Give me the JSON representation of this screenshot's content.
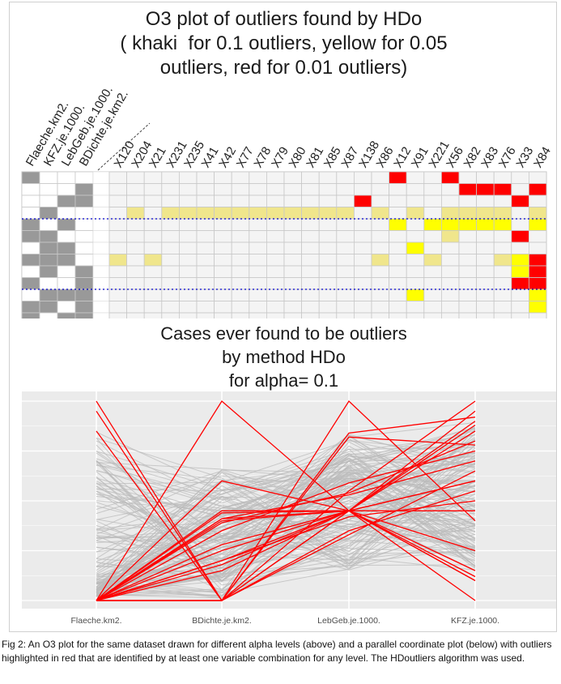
{
  "caption": "Fig 2: An O3 plot for the same dataset drawn for different alpha levels (above) and a parallel coordinate plot (below) with outliers highlighted in red that are identified by at least one variable combination for any level. The HDoutliers algorithm was used.",
  "o3_plot": {
    "title_lines": [
      "O3 plot of outliers found by HDo",
      "( khaki  for 0.1 outliers, yellow for 0.05",
      "outliers, red for 0.01 outliers)"
    ],
    "variable_labels": [
      "Flaeche.km2.",
      "KFZ.je.1000.",
      "LebGeb.je.1000.",
      "BDichte.je.km2."
    ],
    "case_labels": [
      "X120",
      "X204",
      "X21",
      "X231",
      "X235",
      "X41",
      "X42",
      "X77",
      "X78",
      "X79",
      "X80",
      "X81",
      "X85",
      "X87",
      "X138",
      "X86",
      "X12",
      "X91",
      "X221",
      "X56",
      "X82",
      "X83",
      "X76",
      "X33",
      "X84"
    ],
    "colors": {
      "khaki": "#f0e68c",
      "yellow": "#ffff00",
      "red": "#ff0000",
      "grey": "#999999",
      "separator": "#0000cc"
    },
    "variable_rows": [
      [
        1,
        0,
        0,
        0
      ],
      [
        0,
        0,
        0,
        1
      ],
      [
        0,
        0,
        1,
        1
      ],
      [
        0,
        1,
        0,
        0
      ],
      [
        1,
        0,
        1,
        0
      ],
      [
        1,
        1,
        0,
        0
      ],
      [
        0,
        1,
        1,
        0
      ],
      [
        1,
        1,
        1,
        0
      ],
      [
        0,
        1,
        0,
        1
      ],
      [
        1,
        0,
        0,
        1
      ],
      [
        0,
        1,
        1,
        1
      ],
      [
        1,
        1,
        0,
        1
      ],
      [
        1,
        0,
        1,
        1
      ],
      [
        1,
        1,
        1,
        1
      ]
    ],
    "level_rows": [
      [
        0,
        0,
        0,
        0,
        0,
        0,
        0,
        0,
        0,
        0,
        0,
        0,
        0,
        0,
        0,
        0,
        3,
        0,
        0,
        3,
        0,
        0,
        0,
        0,
        0
      ],
      [
        0,
        0,
        0,
        0,
        0,
        0,
        0,
        0,
        0,
        0,
        0,
        0,
        0,
        0,
        0,
        0,
        0,
        0,
        0,
        0,
        3,
        3,
        3,
        0,
        3
      ],
      [
        0,
        0,
        0,
        0,
        0,
        0,
        0,
        0,
        0,
        0,
        0,
        0,
        0,
        0,
        3,
        0,
        0,
        0,
        0,
        0,
        0,
        0,
        0,
        3,
        0
      ],
      [
        0,
        1,
        0,
        1,
        1,
        1,
        1,
        1,
        1,
        1,
        1,
        1,
        1,
        1,
        0,
        1,
        0,
        1,
        0,
        1,
        1,
        1,
        1,
        0,
        1
      ],
      [
        0,
        0,
        0,
        0,
        0,
        0,
        0,
        0,
        0,
        0,
        0,
        0,
        0,
        0,
        0,
        0,
        2,
        0,
        2,
        2,
        2,
        2,
        2,
        0,
        2
      ],
      [
        0,
        0,
        0,
        0,
        0,
        0,
        0,
        0,
        0,
        0,
        0,
        0,
        0,
        0,
        0,
        0,
        0,
        0,
        0,
        1,
        0,
        0,
        0,
        3,
        0
      ],
      [
        0,
        0,
        0,
        0,
        0,
        0,
        0,
        0,
        0,
        0,
        0,
        0,
        0,
        0,
        0,
        0,
        0,
        2,
        0,
        0,
        0,
        0,
        0,
        0,
        0
      ],
      [
        1,
        0,
        1,
        0,
        0,
        0,
        0,
        0,
        0,
        0,
        0,
        0,
        0,
        0,
        0,
        1,
        0,
        0,
        1,
        0,
        0,
        0,
        1,
        2,
        3
      ],
      [
        0,
        0,
        0,
        0,
        0,
        0,
        0,
        0,
        0,
        0,
        0,
        0,
        0,
        0,
        0,
        0,
        0,
        0,
        0,
        0,
        0,
        0,
        0,
        2,
        3
      ],
      [
        0,
        0,
        0,
        0,
        0,
        0,
        0,
        0,
        0,
        0,
        0,
        0,
        0,
        0,
        0,
        0,
        0,
        0,
        0,
        0,
        0,
        0,
        0,
        3,
        3
      ],
      [
        0,
        0,
        0,
        0,
        0,
        0,
        0,
        0,
        0,
        0,
        0,
        0,
        0,
        0,
        0,
        0,
        0,
        2,
        0,
        0,
        0,
        0,
        0,
        0,
        2
      ],
      [
        0,
        0,
        0,
        0,
        0,
        0,
        0,
        0,
        0,
        0,
        0,
        0,
        0,
        0,
        0,
        0,
        0,
        0,
        0,
        0,
        0,
        0,
        0,
        0,
        2
      ],
      [
        0,
        0,
        0,
        0,
        0,
        0,
        0,
        0,
        0,
        0,
        0,
        0,
        0,
        0,
        0,
        0,
        0,
        0,
        0,
        0,
        0,
        0,
        0,
        0,
        0
      ],
      [
        0,
        0,
        0,
        0,
        0,
        0,
        0,
        0,
        0,
        0,
        0,
        0,
        0,
        0,
        0,
        0,
        0,
        0,
        0,
        0,
        0,
        0,
        0,
        0,
        0
      ]
    ],
    "separator_after_rows": [
      3,
      9
    ]
  },
  "chart_data": {
    "type": "parallel-coordinates",
    "title_lines": [
      "Cases ever found to be outliers",
      "by method HDo",
      "for alpha= 0.1"
    ],
    "axes": [
      "Flaeche.km2.",
      "BDichte.je.km2.",
      "LebGeb.je.1000.",
      "KFZ.je.1000."
    ],
    "range": [
      0,
      1
    ],
    "grid": true,
    "colors": {
      "outlier": "#ff0000",
      "other": "#bbbbbb",
      "background": "#ebebeb",
      "gridline": "#ffffff"
    },
    "outlier_series": [
      [
        1.0,
        0.0,
        0.35,
        0.55
      ],
      [
        0.95,
        0.0,
        0.45,
        0.6
      ],
      [
        0.85,
        0.0,
        0.55,
        1.0
      ],
      [
        0.0,
        1.0,
        0.45,
        0.0
      ],
      [
        0.0,
        0.6,
        0.45,
        0.9
      ],
      [
        0.0,
        0.44,
        0.45,
        0.95
      ],
      [
        0.0,
        0.41,
        0.45,
        0.88
      ],
      [
        0.0,
        0.25,
        0.45,
        0.85
      ],
      [
        0.0,
        0.39,
        0.54,
        0.8
      ],
      [
        0.0,
        0.41,
        0.53,
        0.7
      ],
      [
        0.0,
        0.28,
        0.45,
        0.45
      ],
      [
        0.0,
        0.0,
        1.0,
        0.4
      ],
      [
        0.0,
        0.0,
        0.84,
        0.92
      ],
      [
        0.0,
        0.4,
        0.45,
        0.1
      ],
      [
        0.0,
        0.2,
        0.45,
        0.15
      ],
      [
        0.0,
        0.18,
        0.45,
        0.12
      ],
      [
        0.0,
        0.15,
        0.45,
        0.1
      ],
      [
        0.0,
        0.0,
        0.45,
        0.25
      ],
      [
        0.0,
        0.45,
        0.45,
        0.6
      ],
      [
        0.0,
        0.35,
        0.59,
        0.75
      ],
      [
        0.0,
        0.2,
        0.42,
        0.5
      ],
      [
        0.0,
        0.0,
        0.82,
        0.78
      ],
      [
        0.0,
        0.0,
        0.33,
        0.65
      ]
    ],
    "background_cases": 150
  }
}
